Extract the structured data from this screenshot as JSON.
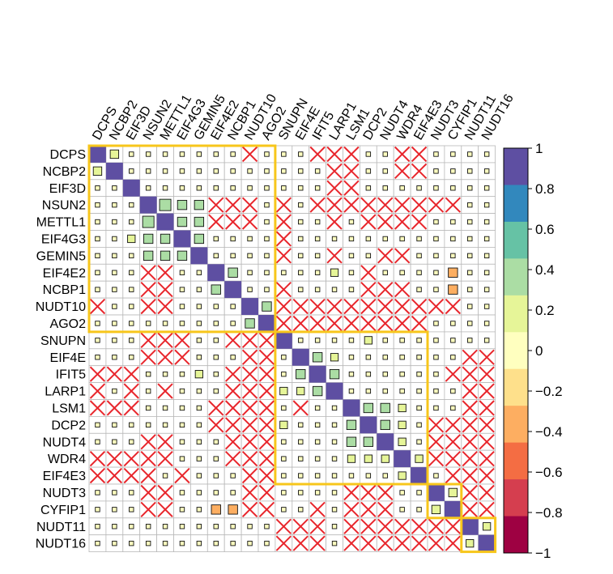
{
  "chart_data": {
    "type": "heatmap",
    "subtype": "correlation-matrix",
    "variables": [
      "DCPS",
      "NCBP2",
      "EIF3D",
      "NSUN2",
      "METTL1",
      "EIF4G3",
      "GEMIN5",
      "EIF4E2",
      "NCBP1",
      "NUDT10",
      "AGO2",
      "SNUPN",
      "EIF4E",
      "IFIT5",
      "LARP1",
      "LSM1",
      "DCP2",
      "NUDT4",
      "WDR4",
      "EIF4E3",
      "NUDT3",
      "CYFIP1",
      "NUDT11",
      "NUDT16"
    ],
    "values": [
      [
        1,
        0.25,
        0.05,
        0.05,
        0.05,
        0.05,
        0.05,
        0.05,
        0.05,
        "x",
        0.05,
        0.05,
        0.05,
        "x",
        "x",
        "x",
        -0.05,
        0.05,
        "x",
        "x",
        -0.05,
        -0.05,
        -0.05,
        -0.05
      ],
      [
        0.25,
        1,
        0.05,
        0.05,
        0.05,
        0.05,
        0.05,
        0.05,
        0.05,
        0.05,
        0.05,
        0.05,
        0.05,
        0.05,
        "x",
        "x",
        -0.05,
        0.05,
        "x",
        "x",
        -0.05,
        -0.05,
        -0.05,
        -0.05
      ],
      [
        0.05,
        0.05,
        1,
        0.05,
        0.05,
        0.05,
        0.05,
        0.05,
        0.05,
        0.05,
        0.05,
        0.05,
        0.05,
        0.05,
        "x",
        "x",
        -0.05,
        0.05,
        0.05,
        -0.05,
        -0.05,
        -0.05,
        -0.05,
        -0.05
      ],
      [
        0.05,
        0.05,
        0.05,
        1,
        0.45,
        0.3,
        0.3,
        "x",
        "x",
        "x",
        0.05,
        "x",
        0.05,
        "x",
        "x",
        "x",
        "x",
        "x",
        "x",
        "x",
        "x",
        "x",
        -0.05,
        -0.05
      ],
      [
        0.05,
        0.05,
        0.05,
        0.45,
        1,
        0.3,
        0.3,
        "x",
        "x",
        "x",
        0.05,
        "x",
        0.05,
        0.05,
        "x",
        0.05,
        "x",
        "x",
        "x",
        "x",
        -0.05,
        -0.05,
        -0.05,
        -0.05
      ],
      [
        0.05,
        0.05,
        0.2,
        0.3,
        0.3,
        1,
        0.3,
        0.05,
        0.05,
        0.05,
        0.05,
        "x",
        0.05,
        0.05,
        0.05,
        0.05,
        0.05,
        0.05,
        0.05,
        0.05,
        -0.05,
        -0.05,
        -0.05,
        -0.05
      ],
      [
        0.05,
        0.05,
        0.05,
        0.3,
        0.3,
        0.3,
        1,
        0.05,
        0.05,
        0.05,
        0.05,
        "x",
        0.05,
        0.05,
        "x",
        0.05,
        0.05,
        "x",
        "x",
        0.05,
        -0.05,
        -0.05,
        -0.05,
        -0.05
      ],
      [
        0.05,
        0.05,
        0.05,
        "x",
        "x",
        0.05,
        0.05,
        1,
        0.3,
        0.05,
        0.05,
        0.05,
        0.05,
        0.05,
        0.2,
        0.05,
        "x",
        0.05,
        0.05,
        0.05,
        -0.05,
        -0.3,
        0.05,
        -0.05
      ],
      [
        0.05,
        0.05,
        0.05,
        "x",
        "x",
        0.05,
        0.05,
        0.3,
        1,
        0.05,
        0.05,
        "x",
        0.05,
        0.05,
        0.05,
        0.05,
        "x",
        "x",
        "x",
        0.05,
        -0.05,
        -0.3,
        -0.05,
        -0.05
      ],
      [
        "x",
        0.05,
        0.05,
        "x",
        "x",
        0.05,
        0.05,
        0.05,
        0.05,
        1,
        0.3,
        "x",
        "x",
        "x",
        "x",
        "x",
        "x",
        "x",
        "x",
        "x",
        "x",
        "x",
        -0.05,
        -0.05
      ],
      [
        0.05,
        0.05,
        0.05,
        0.05,
        0.05,
        0.05,
        0.05,
        0.05,
        0.05,
        0.3,
        1,
        "x",
        "x",
        "x",
        "x",
        "x",
        "x",
        "x",
        "x",
        "x",
        -0.05,
        -0.05,
        -0.05,
        -0.05
      ],
      [
        0.05,
        0.05,
        0.05,
        "x",
        "x",
        "x",
        0.05,
        0.05,
        "x",
        "x",
        "x",
        1,
        0.05,
        0.05,
        0.05,
        0.05,
        0.2,
        0.05,
        0.05,
        0.05,
        -0.05,
        -0.05,
        -0.05,
        -0.05
      ],
      [
        0.05,
        0.05,
        0.05,
        "x",
        "x",
        "x",
        0.05,
        0.05,
        0.05,
        "x",
        "x",
        0.05,
        1,
        0.3,
        0.2,
        0.05,
        0.05,
        0.05,
        0.05,
        0.05,
        -0.05,
        -0.05,
        "x",
        "x"
      ],
      [
        "x",
        "x",
        "x",
        0.05,
        0.05,
        0.05,
        0.2,
        0.05,
        "x",
        "x",
        "x",
        0.05,
        0.3,
        1,
        0.3,
        0.05,
        0.05,
        0.05,
        0.05,
        0.05,
        -0.05,
        "x",
        "x",
        "x"
      ],
      [
        "x",
        0.05,
        "x",
        0.05,
        "x",
        0.05,
        0.05,
        0.05,
        "x",
        "x",
        "x",
        0.2,
        0.2,
        0.3,
        1,
        0.05,
        0.05,
        0.05,
        0.05,
        0.05,
        -0.05,
        -0.05,
        "x",
        "x"
      ],
      [
        "x",
        "x",
        "x",
        0.05,
        0.05,
        0.05,
        0.05,
        "x",
        "x",
        "x",
        "x",
        0.05,
        "x",
        0.05,
        0.05,
        1,
        0.3,
        0.3,
        0.2,
        0.05,
        -0.05,
        -0.05,
        "x",
        "x"
      ],
      [
        0.05,
        0.05,
        0.05,
        0.05,
        0.05,
        0.05,
        0.05,
        "x",
        "x",
        "x",
        "x",
        0.2,
        0.05,
        0.05,
        0.05,
        0.3,
        1,
        0.3,
        0.2,
        0.05,
        "x",
        "x",
        "x",
        "x"
      ],
      [
        0.05,
        0.05,
        0.05,
        "x",
        "x",
        0.05,
        0.05,
        0.05,
        "x",
        "x",
        "x",
        0.05,
        0.05,
        0.05,
        0.05,
        0.3,
        0.3,
        1,
        0.2,
        0.05,
        "x",
        "x",
        "x",
        "x"
      ],
      [
        "x",
        "x",
        "x",
        "x",
        "x",
        0.05,
        0.05,
        0.05,
        "x",
        "x",
        "x",
        0.05,
        0.05,
        0.05,
        0.05,
        0.2,
        0.2,
        0.2,
        1,
        0.2,
        "x",
        "x",
        "x",
        "x"
      ],
      [
        "x",
        "x",
        "x",
        "x",
        0.05,
        "x",
        0.05,
        0.05,
        0.05,
        "x",
        "x",
        0.05,
        0.05,
        0.05,
        0.05,
        0.05,
        0.05,
        0.05,
        0.2,
        1,
        -0.05,
        "x",
        "x",
        "x"
      ],
      [
        0.05,
        0.05,
        0.05,
        "x",
        "x",
        0.05,
        0.05,
        -0.05,
        -0.05,
        "x",
        "x",
        0.05,
        0.05,
        0.05,
        0.05,
        "x",
        "x",
        "x",
        0.05,
        0.05,
        1,
        0.25,
        "x",
        "x"
      ],
      [
        -0.05,
        -0.05,
        -0.05,
        "x",
        "x",
        0.05,
        0.05,
        -0.3,
        -0.3,
        "x",
        "x",
        0.05,
        0.05,
        "x",
        0.05,
        "x",
        "x",
        "x",
        0.05,
        0.05,
        0.25,
        1,
        "x",
        "x"
      ],
      [
        -0.05,
        -0.05,
        -0.05,
        -0.05,
        -0.05,
        -0.05,
        -0.05,
        -0.05,
        -0.05,
        -0.05,
        -0.05,
        "x",
        "x",
        "x",
        -0.05,
        "x",
        "x",
        "x",
        "x",
        "x",
        "x",
        "x",
        1,
        0.2
      ],
      [
        -0.05,
        -0.05,
        -0.05,
        -0.05,
        -0.05,
        -0.05,
        -0.05,
        -0.05,
        -0.05,
        -0.05,
        -0.05,
        "x",
        "x",
        "x",
        -0.05,
        "x",
        "x",
        "x",
        "x",
        "x",
        "x",
        "x",
        0.2,
        1
      ]
    ],
    "insignificant_marker": "x",
    "clusters": [
      {
        "members": [
          "DCPS",
          "NCBP2",
          "EIF3D",
          "NSUN2",
          "METTL1",
          "EIF4G3",
          "GEMIN5",
          "EIF4E2",
          "NCBP1",
          "NUDT10",
          "AGO2"
        ]
      },
      {
        "members": [
          "SNUPN",
          "EIF4E",
          "IFIT5",
          "LARP1",
          "LSM1",
          "DCP2",
          "NUDT4",
          "WDR4",
          "EIF4E3"
        ]
      },
      {
        "members": [
          "NUDT3",
          "CYFIP1"
        ]
      },
      {
        "members": [
          "NUDT11",
          "NUDT16"
        ]
      }
    ],
    "colorbar": {
      "ticks": [
        "1",
        "0.8",
        "0.6",
        "0.4",
        "0.2",
        "0",
        "−0.2",
        "−0.4",
        "−0.6",
        "−0.8",
        "−1"
      ],
      "range": [
        -1,
        1
      ],
      "colors": [
        "#9e0142",
        "#d53e4f",
        "#f46d43",
        "#fdae61",
        "#fee08b",
        "#ffffbf",
        "#e6f598",
        "#abdda4",
        "#66c2a5",
        "#3288bd",
        "#5e4fa2"
      ]
    },
    "cluster_box_color": "#f7c61b",
    "insignificant_color": "#e8262c"
  }
}
